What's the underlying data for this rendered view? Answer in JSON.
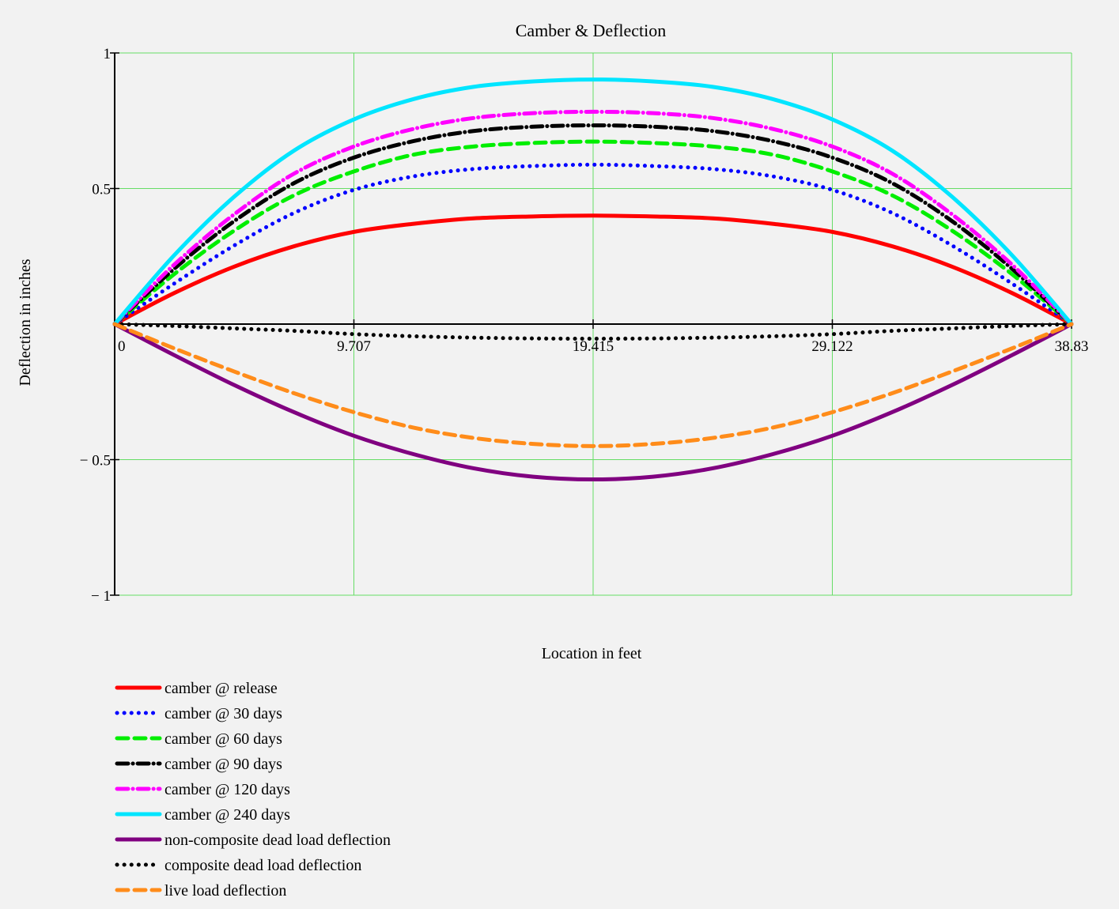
{
  "chart_data": {
    "type": "line",
    "title": "Camber & Deflection",
    "xlabel": "Location in feet",
    "ylabel": "Deflection in inches",
    "xlim": [
      0,
      38.83
    ],
    "ylim": [
      -1,
      1
    ],
    "x_ticks": [
      {
        "value": 0,
        "label": "0"
      },
      {
        "value": 9.7075,
        "label": "9.707"
      },
      {
        "value": 19.415,
        "label": "19.415"
      },
      {
        "value": 29.1225,
        "label": "29.122"
      },
      {
        "value": 38.83,
        "label": "38.83"
      }
    ],
    "y_ticks": [
      {
        "value": 1,
        "label": "1"
      },
      {
        "value": 0.5,
        "label": "0.5"
      },
      {
        "value": -0.5,
        "label": "− 0.5"
      },
      {
        "value": -1,
        "label": "− 1"
      }
    ],
    "grid": true,
    "grid_color": "#66dd66",
    "legend_position": "bottom-left",
    "x": [
      0,
      2.42688,
      4.85375,
      7.28063,
      9.7075,
      12.13438,
      14.56125,
      16.98813,
      19.415,
      21.84188,
      24.26875,
      26.69563,
      29.1225,
      31.54938,
      33.97625,
      36.40313,
      38.83
    ],
    "series": [
      {
        "name": "camber @ release",
        "color": "#ff0000",
        "style": "solid",
        "values": [
          0,
          0.115,
          0.212,
          0.287,
          0.34,
          0.37,
          0.39,
          0.397,
          0.4,
          0.397,
          0.39,
          0.37,
          0.34,
          0.287,
          0.212,
          0.115,
          0
        ]
      },
      {
        "name": "camber @ 30 days",
        "color": "#0000ff",
        "style": "dotted",
        "values": [
          0,
          0.15,
          0.29,
          0.41,
          0.495,
          0.545,
          0.572,
          0.583,
          0.588,
          0.583,
          0.572,
          0.545,
          0.495,
          0.41,
          0.29,
          0.15,
          0
        ]
      },
      {
        "name": "camber @ 60 days",
        "color": "#00ee00",
        "style": "dashed",
        "values": [
          0,
          0.185,
          0.345,
          0.475,
          0.563,
          0.625,
          0.655,
          0.668,
          0.673,
          0.668,
          0.655,
          0.625,
          0.563,
          0.475,
          0.345,
          0.185,
          0
        ]
      },
      {
        "name": "camber @ 90 days",
        "color": "#000000",
        "style": "dashdot",
        "values": [
          0,
          0.205,
          0.38,
          0.52,
          0.614,
          0.675,
          0.712,
          0.728,
          0.733,
          0.728,
          0.712,
          0.675,
          0.614,
          0.52,
          0.38,
          0.205,
          0
        ]
      },
      {
        "name": "camber @ 120 days",
        "color": "#ff00ff",
        "style": "dashdot",
        "values": [
          0,
          0.22,
          0.405,
          0.555,
          0.655,
          0.72,
          0.76,
          0.778,
          0.783,
          0.778,
          0.76,
          0.72,
          0.655,
          0.555,
          0.405,
          0.22,
          0
        ]
      },
      {
        "name": "camber @ 240 days",
        "color": "#00e5ff",
        "style": "solid",
        "values": [
          0,
          0.255,
          0.47,
          0.64,
          0.755,
          0.83,
          0.875,
          0.895,
          0.902,
          0.895,
          0.875,
          0.83,
          0.755,
          0.64,
          0.47,
          0.255,
          0
        ]
      },
      {
        "name": "non-composite dead load deflection",
        "color": "#800080",
        "style": "solid",
        "values": [
          0,
          -0.115,
          -0.225,
          -0.325,
          -0.412,
          -0.48,
          -0.532,
          -0.563,
          -0.573,
          -0.563,
          -0.532,
          -0.48,
          -0.412,
          -0.325,
          -0.225,
          -0.115,
          0
        ]
      },
      {
        "name": "composite dead load deflection",
        "color": "#000000",
        "style": "dotted",
        "values": [
          0,
          -0.007,
          -0.016,
          -0.025,
          -0.037,
          -0.045,
          -0.05,
          -0.053,
          -0.054,
          -0.053,
          -0.05,
          -0.045,
          -0.037,
          -0.025,
          -0.016,
          -0.007,
          0
        ]
      },
      {
        "name": "live load deflection",
        "color": "#ff8c1a",
        "style": "dashed",
        "values": [
          0,
          -0.09,
          -0.175,
          -0.255,
          -0.325,
          -0.382,
          -0.42,
          -0.442,
          -0.45,
          -0.442,
          -0.42,
          -0.382,
          -0.325,
          -0.255,
          -0.175,
          -0.09,
          0
        ]
      }
    ]
  }
}
